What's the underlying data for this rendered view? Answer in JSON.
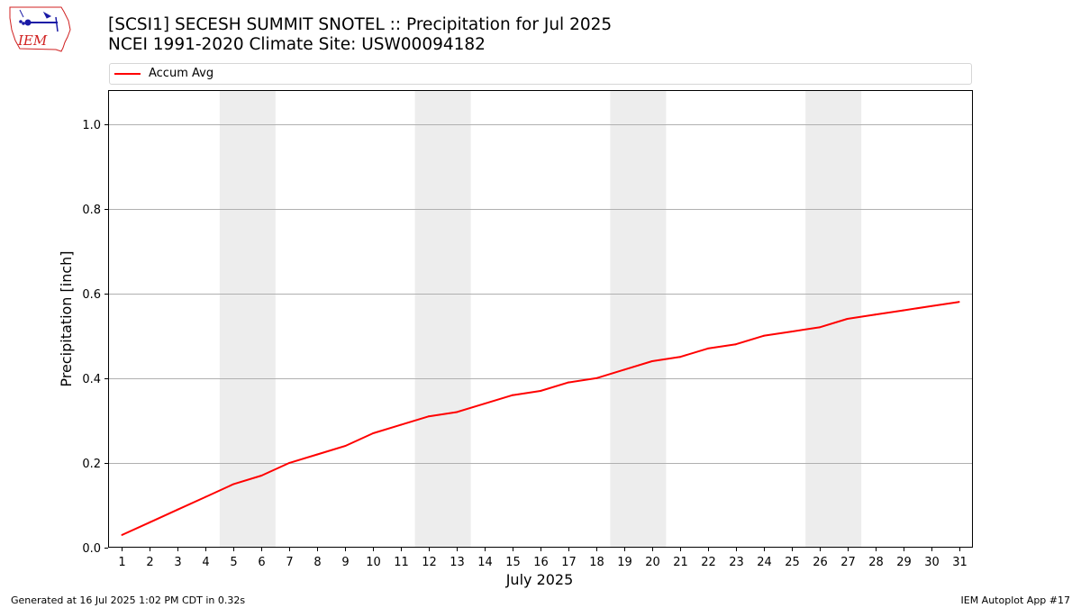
{
  "header": {
    "title_line1": "[SCSI1] SECESH SUMMIT SNOTEL :: Precipitation for Jul 2025",
    "title_line2": "NCEI 1991-2020 Climate Site: USW00094182"
  },
  "logo": {
    "text": "IEM"
  },
  "footer": {
    "generated": "Generated at 16 Jul 2025 1:02 PM CDT in 0.32s",
    "app": "IEM Autoplot App #17"
  },
  "colors": {
    "series": "#ff0000",
    "weekend_band": "#ededed",
    "grid": "#b0b0b0",
    "logo": "#1a1aa6",
    "logo_text": "#d02020"
  },
  "chart_data": {
    "type": "line",
    "xlabel": "July 2025",
    "ylabel": "Precipitation [inch]",
    "x": [
      1,
      2,
      3,
      4,
      5,
      6,
      7,
      8,
      9,
      10,
      11,
      12,
      13,
      14,
      15,
      16,
      17,
      18,
      19,
      20,
      21,
      22,
      23,
      24,
      25,
      26,
      27,
      28,
      29,
      30,
      31
    ],
    "xlim": [
      0.5,
      31.5
    ],
    "ylim": [
      0,
      1.08
    ],
    "yticks": [
      0.0,
      0.2,
      0.4,
      0.6,
      0.8,
      1.0
    ],
    "ytick_labels": [
      "0.0",
      "0.2",
      "0.4",
      "0.6",
      "0.8",
      "1.0"
    ],
    "grid": "horizontal",
    "legend_position": "top",
    "weekend_spans": [
      [
        5,
        6
      ],
      [
        12,
        13
      ],
      [
        19,
        20
      ],
      [
        26,
        27
      ]
    ],
    "series": [
      {
        "name": "Accum Avg",
        "color": "#ff0000",
        "values": [
          0.03,
          0.06,
          0.09,
          0.12,
          0.15,
          0.17,
          0.2,
          0.22,
          0.24,
          0.27,
          0.29,
          0.31,
          0.32,
          0.34,
          0.36,
          0.37,
          0.39,
          0.4,
          0.42,
          0.44,
          0.45,
          0.47,
          0.48,
          0.5,
          0.51,
          0.52,
          0.54,
          0.55,
          0.56,
          0.57,
          0.58
        ]
      }
    ]
  }
}
